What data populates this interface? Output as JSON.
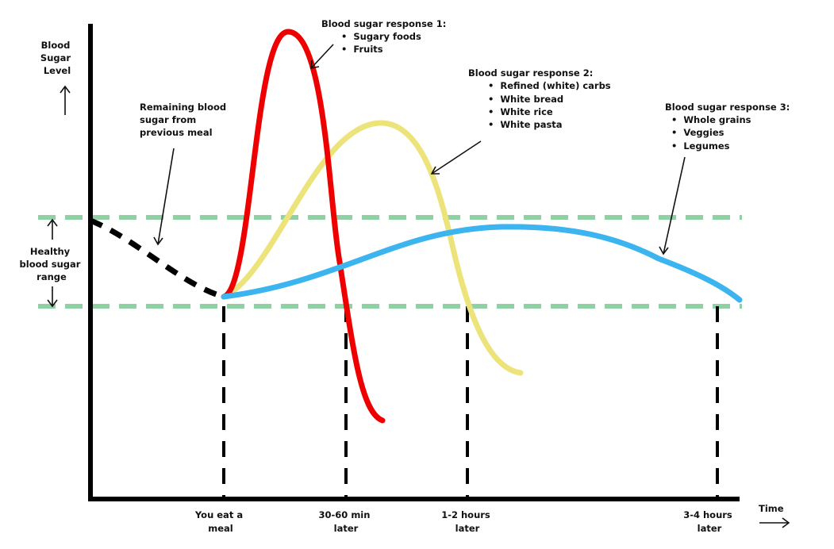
{
  "labels": {
    "y_axis": [
      "Blood",
      "Sugar",
      "Level"
    ],
    "x_axis": "Time",
    "healthy_range": [
      "Healthy",
      "blood sugar",
      "range"
    ],
    "remaining": [
      "Remaining blood",
      "sugar from",
      "previous meal"
    ]
  },
  "time_markers": [
    [
      "You eat a",
      "meal"
    ],
    [
      "30-60 min",
      "later"
    ],
    [
      "1-2 hours",
      "later"
    ],
    [
      "3-4 hours",
      "later"
    ]
  ],
  "responses": [
    {
      "title": "Blood sugar response 1:",
      "items": [
        "Sugary foods",
        "Fruits"
      ],
      "color": "#ee0000"
    },
    {
      "title": "Blood sugar response 2:",
      "items": [
        "Refined (white) carbs",
        "White bread",
        "White rice",
        "White pasta"
      ],
      "color": "#ece47a"
    },
    {
      "title": "Blood sugar response 3:",
      "items": [
        "Whole grains",
        "Veggies",
        "Legumes"
      ],
      "color": "#3cb4f0"
    }
  ],
  "colors": {
    "axis": "#000000",
    "healthy_band": "#8fd1a4",
    "previous_meal": "#000000"
  },
  "bullet": "•"
}
